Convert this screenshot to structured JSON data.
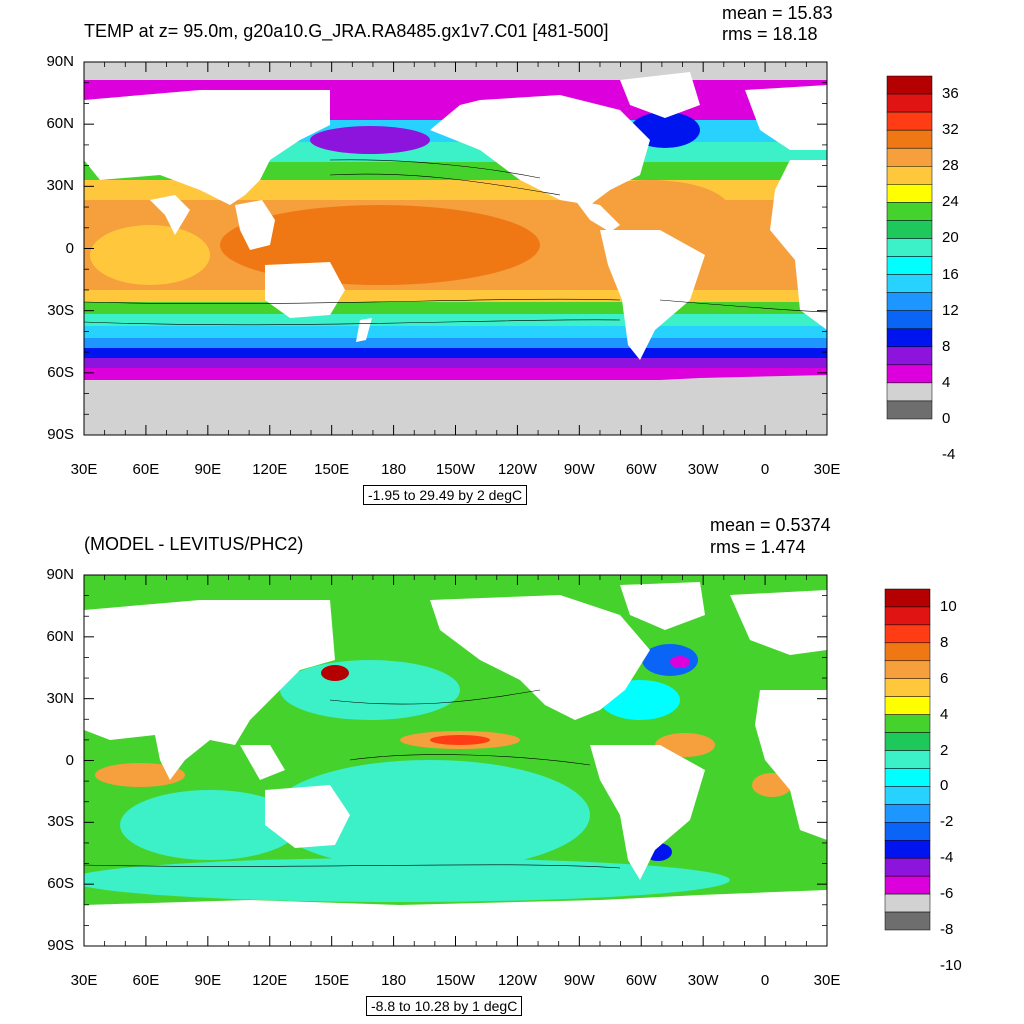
{
  "top": {
    "title": "TEMP at z=  95.0m, g20a10.G_JRA.RA8485.gx1v7.C01 [481-500]",
    "mean": "mean = 15.83",
    "rms": "rms = 18.18",
    "info": "-1.95 to 29.49 by 2 degC",
    "colorbar_labels": [
      "36",
      "32",
      "28",
      "24",
      "20",
      "16",
      "12",
      "8",
      "4",
      "0",
      "-4"
    ],
    "colorbar_colors": [
      "#b40000",
      "#e11414",
      "#ff3c14",
      "#f07814",
      "#f5a03c",
      "#ffc83c",
      "#ffff00",
      "#46d22d",
      "#1ec85a",
      "#3cf0c8",
      "#00ffff",
      "#28d2ff",
      "#1e96ff",
      "#0a64f5",
      "#0014f0",
      "#8c14dc",
      "#dc00dc",
      "#d2d2d2",
      "#6e6e6e"
    ]
  },
  "bottom": {
    "title": "(MODEL - LEVITUS/PHC2)",
    "mean": "mean = 0.5374",
    "rms": "rms = 1.474",
    "info": "-8.8 to 10.28 by 1 degC",
    "colorbar_labels": [
      "10",
      "8",
      "6",
      "4",
      "2",
      "0",
      "-2",
      "-4",
      "-6",
      "-8",
      "-10"
    ],
    "colorbar_colors": [
      "#b40000",
      "#e11414",
      "#ff3c14",
      "#f07814",
      "#f5a03c",
      "#ffc83c",
      "#ffff00",
      "#46d22d",
      "#1ec85a",
      "#3cf0c8",
      "#00ffff",
      "#28d2ff",
      "#1e96ff",
      "#0a64f5",
      "#0014f0",
      "#8c14dc",
      "#dc00dc",
      "#d2d2d2",
      "#6e6e6e"
    ]
  },
  "chart_data": [
    {
      "type": "heatmap",
      "title": "TEMP at z=  95.0m, g20a10.G_JRA.RA8485.gx1v7.C01 [481-500]",
      "xticks": [
        "30E",
        "60E",
        "90E",
        "120E",
        "150E",
        "180",
        "150W",
        "120W",
        "90W",
        "60W",
        "30W",
        "0",
        "30E"
      ],
      "yticks": [
        "90N",
        "60N",
        "30N",
        "0",
        "30S",
        "60S",
        "90S"
      ],
      "xlim": [
        30,
        390
      ],
      "ylim": [
        -90,
        90
      ],
      "contour_interval": 2,
      "units": "degC",
      "mean": 15.83,
      "rms": 18.18,
      "colorbar_ticks": [
        36,
        32,
        28,
        24,
        20,
        16,
        12,
        8,
        4,
        0,
        -4
      ]
    },
    {
      "type": "heatmap",
      "title": "(MODEL - LEVITUS/PHC2)",
      "xticks": [
        "30E",
        "60E",
        "90E",
        "120E",
        "150E",
        "180",
        "150W",
        "120W",
        "90W",
        "60W",
        "30W",
        "0",
        "30E"
      ],
      "yticks": [
        "90N",
        "60N",
        "30N",
        "0",
        "30S",
        "60S",
        "90S"
      ],
      "xlim": [
        30,
        390
      ],
      "ylim": [
        -90,
        90
      ],
      "contour_interval": 1,
      "units": "degC",
      "mean": 0.5374,
      "rms": 1.474,
      "colorbar_ticks": [
        10,
        8,
        6,
        4,
        2,
        0,
        -2,
        -4,
        -6,
        -8,
        -10
      ]
    }
  ]
}
